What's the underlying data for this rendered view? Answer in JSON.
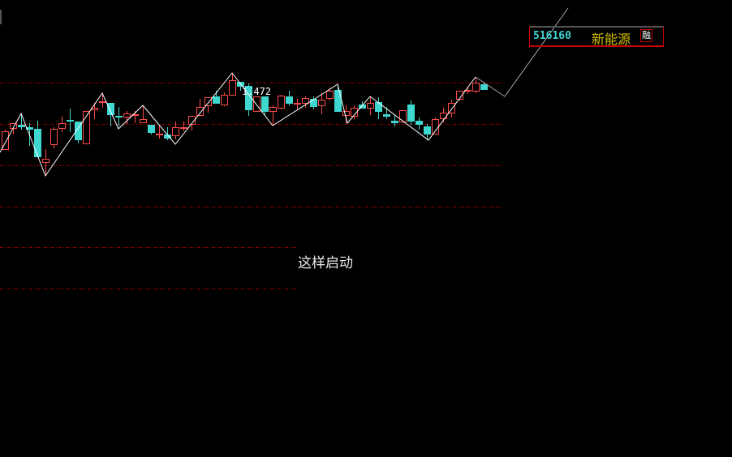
{
  "header": {
    "stock_code": "516160",
    "stock_name": "新能源",
    "margin_badge": "融"
  },
  "caption": "这样启动",
  "colors": {
    "background": "#000000",
    "up": "#ff4a4a",
    "down": "#3fd8d0",
    "grid": "#8b0000",
    "zigzag": "#ffffff",
    "code": "#3fd0d0",
    "name": "#d4c000"
  },
  "chart_data": {
    "type": "candlestick",
    "title": "",
    "grid_lines": [
      1.46,
      1.409,
      1.358,
      1.307,
      1.257,
      1.206
    ],
    "grid_style": "dashed",
    "ohlc_fields": [
      "open",
      "high",
      "low",
      "close"
    ],
    "candles": [
      [
        1.378,
        1.402,
        1.378,
        1.4
      ],
      [
        1.404,
        1.41,
        1.396,
        1.41
      ],
      [
        1.408,
        1.422,
        1.402,
        1.406
      ],
      [
        1.405,
        1.41,
        1.382,
        1.403
      ],
      [
        1.403,
        1.413,
        1.369,
        1.369
      ],
      [
        1.362,
        1.378,
        1.345,
        1.366
      ],
      [
        1.384,
        1.405,
        1.379,
        1.403
      ],
      [
        1.404,
        1.418,
        1.399,
        1.41
      ],
      [
        1.414,
        1.428,
        1.399,
        1.413
      ],
      [
        1.412,
        1.412,
        1.385,
        1.39
      ],
      [
        1.385,
        1.425,
        1.385,
        1.425
      ],
      [
        1.427,
        1.435,
        1.415,
        1.429
      ],
      [
        1.436,
        1.447,
        1.429,
        1.437
      ],
      [
        1.435,
        1.435,
        1.406,
        1.421
      ],
      [
        1.419,
        1.43,
        1.406,
        1.418
      ],
      [
        1.418,
        1.425,
        1.409,
        1.422
      ],
      [
        1.42,
        1.425,
        1.41,
        1.421
      ],
      [
        1.411,
        1.432,
        1.41,
        1.415
      ],
      [
        1.408,
        1.408,
        1.396,
        1.399
      ],
      [
        1.396,
        1.408,
        1.391,
        1.397
      ],
      [
        1.396,
        1.405,
        1.389,
        1.392
      ],
      [
        1.395,
        1.412,
        1.39,
        1.405
      ],
      [
        1.404,
        1.412,
        1.4,
        1.405
      ],
      [
        1.409,
        1.419,
        1.401,
        1.419
      ],
      [
        1.42,
        1.44,
        1.418,
        1.43
      ],
      [
        1.432,
        1.442,
        1.423,
        1.442
      ],
      [
        1.443,
        1.45,
        1.435,
        1.435
      ],
      [
        1.433,
        1.448,
        1.431,
        1.445
      ],
      [
        1.445,
        1.471,
        1.445,
        1.463
      ],
      [
        1.461,
        1.461,
        1.45,
        1.456
      ],
      [
        1.456,
        1.459,
        1.419,
        1.427
      ],
      [
        1.425,
        1.443,
        1.425,
        1.443
      ],
      [
        1.443,
        1.443,
        1.42,
        1.425
      ],
      [
        1.425,
        1.432,
        1.407,
        1.43
      ],
      [
        1.429,
        1.445,
        1.427,
        1.444
      ],
      [
        1.443,
        1.45,
        1.432,
        1.435
      ],
      [
        1.434,
        1.44,
        1.427,
        1.435
      ],
      [
        1.435,
        1.443,
        1.429,
        1.441
      ],
      [
        1.44,
        1.443,
        1.427,
        1.431
      ],
      [
        1.432,
        1.447,
        1.421,
        1.439
      ],
      [
        1.441,
        1.454,
        1.438,
        1.45
      ],
      [
        1.451,
        1.457,
        1.425,
        1.425
      ],
      [
        1.42,
        1.432,
        1.41,
        1.425
      ],
      [
        1.419,
        1.432,
        1.415,
        1.429
      ],
      [
        1.433,
        1.437,
        1.428,
        1.429
      ],
      [
        1.429,
        1.443,
        1.42,
        1.435
      ],
      [
        1.436,
        1.442,
        1.415,
        1.425
      ],
      [
        1.421,
        1.43,
        1.415,
        1.419
      ],
      [
        1.413,
        1.42,
        1.406,
        1.411
      ],
      [
        1.412,
        1.426,
        1.41,
        1.426
      ],
      [
        1.433,
        1.438,
        1.408,
        1.413
      ],
      [
        1.413,
        1.417,
        1.402,
        1.409
      ],
      [
        1.406,
        1.409,
        1.389,
        1.397
      ],
      [
        1.397,
        1.417,
        1.397,
        1.415
      ],
      [
        1.416,
        1.429,
        1.411,
        1.423
      ],
      [
        1.423,
        1.439,
        1.417,
        1.435
      ],
      [
        1.44,
        1.45,
        1.438,
        1.45
      ],
      [
        1.45,
        1.455,
        1.446,
        1.451
      ],
      [
        1.45,
        1.467,
        1.447,
        1.46
      ],
      [
        1.458,
        1.46,
        1.452,
        1.452
      ]
    ],
    "zigzag": [
      [
        -0.6,
        1.374
      ],
      [
        2,
        1.422
      ],
      [
        5,
        1.345
      ],
      [
        12,
        1.447
      ],
      [
        14,
        1.403
      ],
      [
        17,
        1.432
      ],
      [
        21,
        1.384
      ],
      [
        28,
        1.472
      ],
      [
        33,
        1.407
      ],
      [
        41,
        1.458
      ],
      [
        42.2,
        1.41
      ],
      [
        45,
        1.443
      ],
      [
        52.2,
        1.389
      ],
      [
        58,
        1.467
      ],
      [
        61.6,
        1.443
      ],
      [
        69.4,
        1.552
      ]
    ],
    "annotations": [
      {
        "text": "1.472",
        "at_candle": 29,
        "price": 1.472
      }
    ]
  }
}
